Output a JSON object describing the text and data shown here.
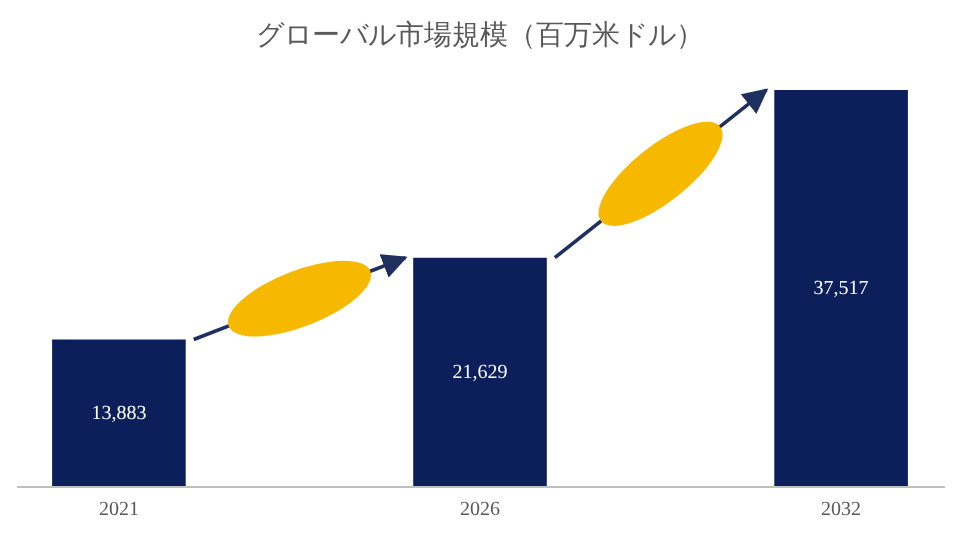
{
  "chart_data": {
    "type": "bar",
    "title": "グローバル市場規模（百万米ドル）",
    "categories": [
      "2021",
      "2026",
      "2032"
    ],
    "values": [
      13883,
      21629,
      37517
    ],
    "color": "#0c1f5a",
    "value_labels": [
      "13,883",
      "21,629",
      "37,517"
    ],
    "tick_labels": "x",
    "grid": false
  }
}
